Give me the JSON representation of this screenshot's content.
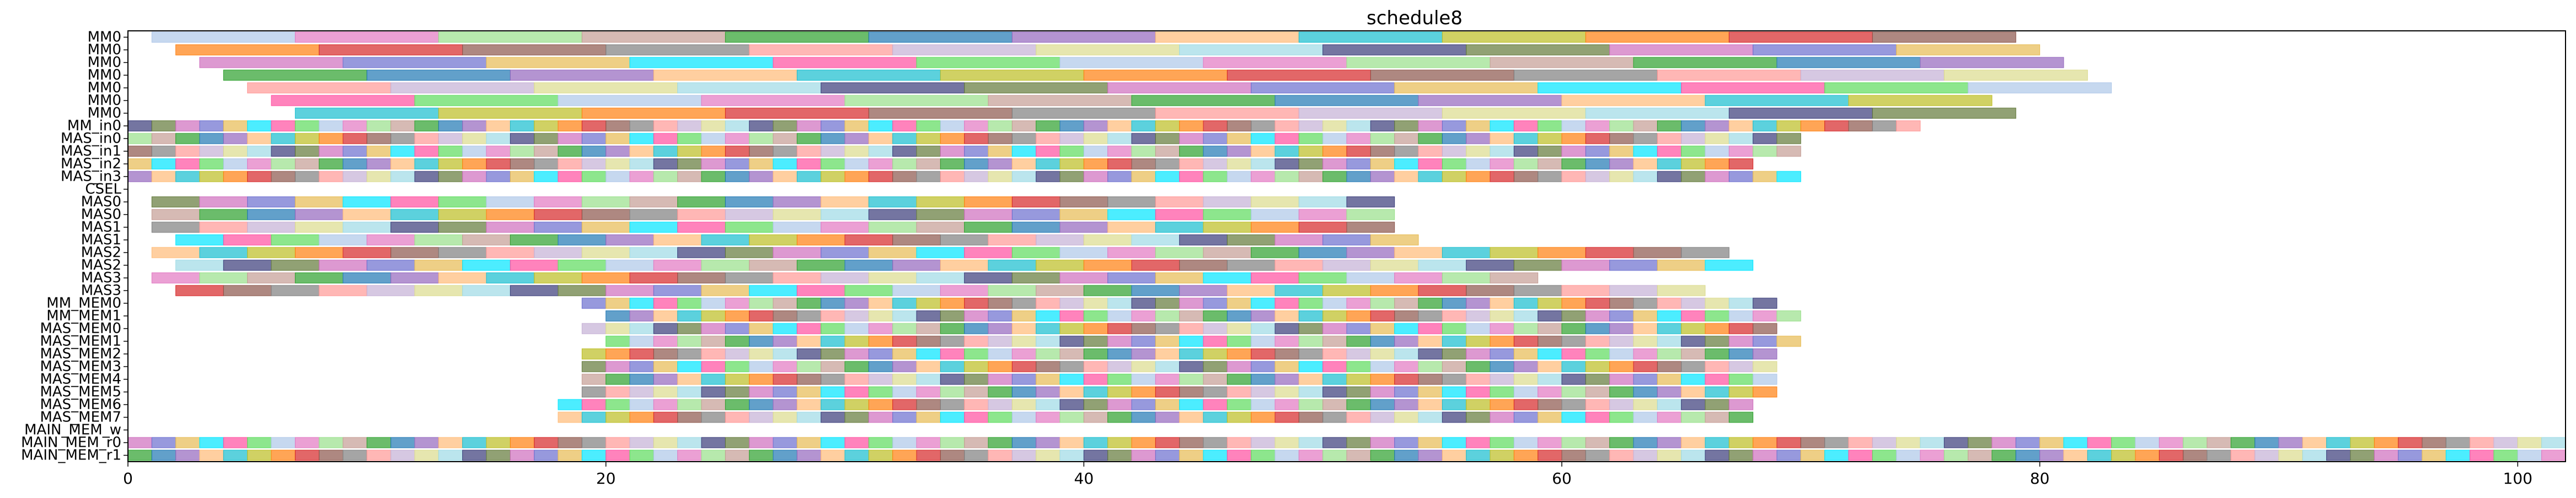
{
  "chart_data": {
    "type": "gantt",
    "title": "schedule8",
    "xlabel": "",
    "ylabel": "",
    "xlim": [
      0,
      102
    ],
    "x_ticks": [
      0,
      20,
      40,
      60,
      80,
      100
    ],
    "grid": false,
    "legend": "none",
    "rows": [
      "MM0",
      "MM0",
      "MM0",
      "MM0",
      "MM0",
      "MM0",
      "MM0",
      "MM_in0",
      "MAS_in0",
      "MAS_in1",
      "MAS_in2",
      "MAS_in3",
      "CSEL",
      "MAS0",
      "MAS0",
      "MAS1",
      "MAS1",
      "MAS2",
      "MAS2",
      "MAS3",
      "MAS3",
      "MM_MEM0",
      "MM_MEM1",
      "MAS_MEM0",
      "MAS_MEM1",
      "MAS_MEM2",
      "MAS_MEM3",
      "MAS_MEM4",
      "MAS_MEM5",
      "MAS_MEM6",
      "MAS_MEM7",
      "MAIN_MEM_w",
      "MAIN_MEM_r0",
      "MAIN_MEM_r1"
    ],
    "palette": [
      "#aec7e8",
      "#e377c2",
      "#98df8a",
      "#c49c94",
      "#2ca02c",
      "#1f77b4",
      "#9467bd",
      "#ffbb78",
      "#17becf",
      "#bcbd22",
      "#ff7f0e",
      "#d62728",
      "#8c564b",
      "#7f7f7f",
      "#ff9896",
      "#c5b0d5",
      "#dbdb8d",
      "#9edae5",
      "#393b79",
      "#637939",
      "#ce6dbd",
      "#6b6ecf",
      "#e7ba52",
      "#00e5ff",
      "#ff4fa0",
      "#5cdb5c"
    ],
    "patterns": [
      {
        "row": 0,
        "start": 1,
        "dur": 6,
        "step": 6,
        "count": 13
      },
      {
        "row": 1,
        "start": 2,
        "dur": 6,
        "step": 6,
        "count": 13
      },
      {
        "row": 2,
        "start": 3,
        "dur": 6,
        "step": 6,
        "count": 13
      },
      {
        "row": 3,
        "start": 4,
        "dur": 6,
        "step": 6,
        "count": 13
      },
      {
        "row": 4,
        "start": 5,
        "dur": 6,
        "step": 6,
        "count": 13
      },
      {
        "row": 5,
        "start": 6,
        "dur": 6,
        "step": 6,
        "count": 12
      },
      {
        "row": 6,
        "start": 7,
        "dur": 6,
        "step": 6,
        "count": 12
      },
      {
        "row": 7,
        "start": 0,
        "dur": 1,
        "step": 1,
        "count": 75
      },
      {
        "row": 8,
        "start": 0,
        "dur": 1,
        "step": 1,
        "count": 70
      },
      {
        "row": 9,
        "start": 0,
        "dur": 1,
        "step": 1,
        "count": 70
      },
      {
        "row": 10,
        "start": 0,
        "dur": 1,
        "step": 1,
        "count": 68
      },
      {
        "row": 11,
        "start": 0,
        "dur": 1,
        "step": 1,
        "count": 70
      },
      {
        "row": 13,
        "start": 1,
        "dur": 2,
        "step": 2,
        "count": 26
      },
      {
        "row": 14,
        "start": 1,
        "dur": 2,
        "step": 2,
        "count": 26
      },
      {
        "row": 15,
        "start": 1,
        "dur": 2,
        "step": 2,
        "count": 26
      },
      {
        "row": 16,
        "start": 2,
        "dur": 2,
        "step": 2,
        "count": 26
      },
      {
        "row": 17,
        "start": 1,
        "dur": 2,
        "step": 2,
        "count": 33
      },
      {
        "row": 18,
        "start": 2,
        "dur": 2,
        "step": 2,
        "count": 33
      },
      {
        "row": 19,
        "start": 1,
        "dur": 2,
        "step": 2,
        "count": 29
      },
      {
        "row": 20,
        "start": 2,
        "dur": 2,
        "step": 2,
        "count": 32
      },
      {
        "row": 21,
        "start": 19,
        "dur": 1,
        "step": 1,
        "count": 50
      },
      {
        "row": 22,
        "start": 20,
        "dur": 1,
        "step": 1,
        "count": 50
      },
      {
        "row": 23,
        "start": 19,
        "dur": 1,
        "step": 1,
        "count": 50
      },
      {
        "row": 24,
        "start": 20,
        "dur": 1,
        "step": 1,
        "count": 50
      },
      {
        "row": 25,
        "start": 19,
        "dur": 1,
        "step": 1,
        "count": 50
      },
      {
        "row": 26,
        "start": 19,
        "dur": 1,
        "step": 1,
        "count": 50
      },
      {
        "row": 27,
        "start": 19,
        "dur": 1,
        "step": 1,
        "count": 50
      },
      {
        "row": 28,
        "start": 19,
        "dur": 1,
        "step": 1,
        "count": 50
      },
      {
        "row": 29,
        "start": 18,
        "dur": 1,
        "step": 1,
        "count": 50
      },
      {
        "row": 30,
        "start": 18,
        "dur": 1,
        "step": 1,
        "count": 50
      },
      {
        "row": 32,
        "start": 0,
        "dur": 1,
        "step": 1,
        "count": 102
      },
      {
        "row": 33,
        "start": 0,
        "dur": 1,
        "step": 1,
        "count": 102
      }
    ]
  }
}
